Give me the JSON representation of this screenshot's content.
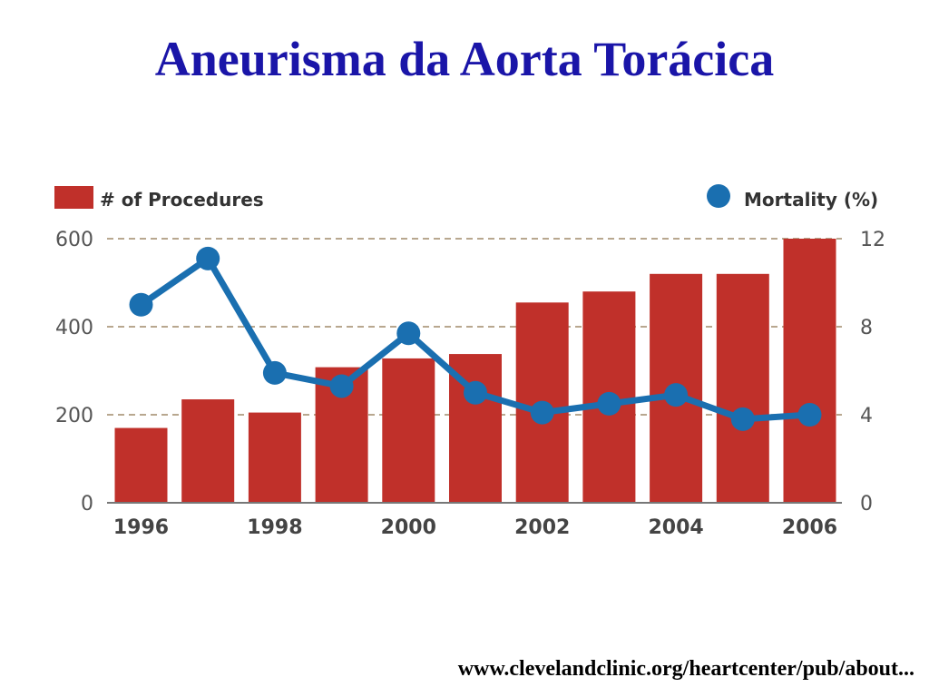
{
  "slide": {
    "title": "Aneurisma da Aorta Torácica",
    "source": "www.clevelandclinic.org/heartcenter/pub/about..."
  },
  "chart_data": {
    "type": "bar",
    "categories": [
      "1996",
      "1997",
      "1998",
      "1999",
      "2000",
      "2001",
      "2002",
      "2003",
      "2004",
      "2005",
      "2006"
    ],
    "x_tick_labels": [
      "1996",
      "",
      "1998",
      "",
      "2000",
      "",
      "2002",
      "",
      "2004",
      "",
      "2006"
    ],
    "series": [
      {
        "name": "# of Procedures",
        "type": "bar",
        "axis": "left",
        "color": "#c0302a",
        "values": [
          170,
          235,
          205,
          308,
          328,
          338,
          455,
          480,
          520,
          520,
          600
        ]
      },
      {
        "name": "Mortality (%)",
        "type": "line",
        "axis": "right",
        "color": "#1a6fb0",
        "values": [
          9.0,
          11.1,
          5.9,
          5.3,
          7.7,
          5.0,
          4.1,
          4.5,
          4.9,
          3.8,
          4.0
        ]
      }
    ],
    "y_left": {
      "lim": [
        0,
        600
      ],
      "ticks": [
        0,
        200,
        400,
        600
      ]
    },
    "y_right": {
      "lim": [
        0,
        12
      ],
      "ticks": [
        0,
        4,
        8,
        12
      ]
    },
    "grid": "dashed horizontal",
    "legend": "top"
  }
}
